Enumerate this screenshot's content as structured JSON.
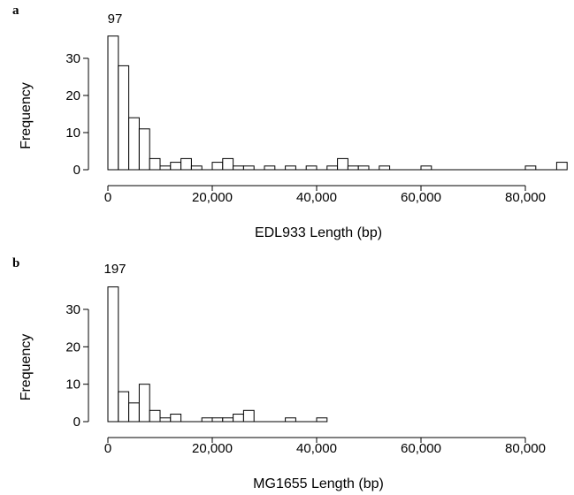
{
  "chart_data": [
    {
      "type": "bar",
      "panel": "a",
      "xlabel": "EDL933 Length (bp)",
      "ylabel": "Frequency",
      "bin_width": 2000,
      "xlim": [
        0,
        88000
      ],
      "ylim": [
        0,
        35
      ],
      "xticks": [
        0,
        20000,
        40000,
        60000,
        80000
      ],
      "xtick_labels": [
        "0",
        "20,000",
        "40,000",
        "60,000",
        "80,000"
      ],
      "yticks": [
        0,
        10,
        20,
        30
      ],
      "ytick_labels": [
        "0",
        "10",
        "20",
        "30"
      ],
      "overflow_label": "97",
      "bin_starts": [
        0,
        2000,
        4000,
        6000,
        8000,
        10000,
        12000,
        14000,
        16000,
        18000,
        20000,
        22000,
        24000,
        26000,
        30000,
        34000,
        38000,
        42000,
        44000,
        46000,
        48000,
        52000,
        60000,
        80000,
        86000
      ],
      "values": [
        97,
        28,
        14,
        11,
        3,
        1,
        2,
        3,
        1,
        0,
        2,
        3,
        1,
        1,
        1,
        1,
        1,
        1,
        3,
        1,
        1,
        1,
        1,
        1,
        2
      ]
    },
    {
      "type": "bar",
      "panel": "b",
      "xlabel": "MG1655 Length (bp)",
      "ylabel": "Frequency",
      "bin_width": 2000,
      "xlim": [
        0,
        88000
      ],
      "ylim": [
        0,
        35
      ],
      "xticks": [
        0,
        20000,
        40000,
        60000,
        80000
      ],
      "xtick_labels": [
        "0",
        "20,000",
        "40,000",
        "60,000",
        "80,000"
      ],
      "yticks": [
        0,
        10,
        20,
        30
      ],
      "ytick_labels": [
        "0",
        "10",
        "20",
        "30"
      ],
      "overflow_label": "197",
      "bin_starts": [
        0,
        2000,
        4000,
        6000,
        8000,
        10000,
        12000,
        18000,
        20000,
        22000,
        24000,
        26000,
        34000,
        40000
      ],
      "values": [
        197,
        8,
        5,
        10,
        3,
        1,
        2,
        1,
        1,
        1,
        2,
        3,
        1,
        1
      ]
    }
  ]
}
